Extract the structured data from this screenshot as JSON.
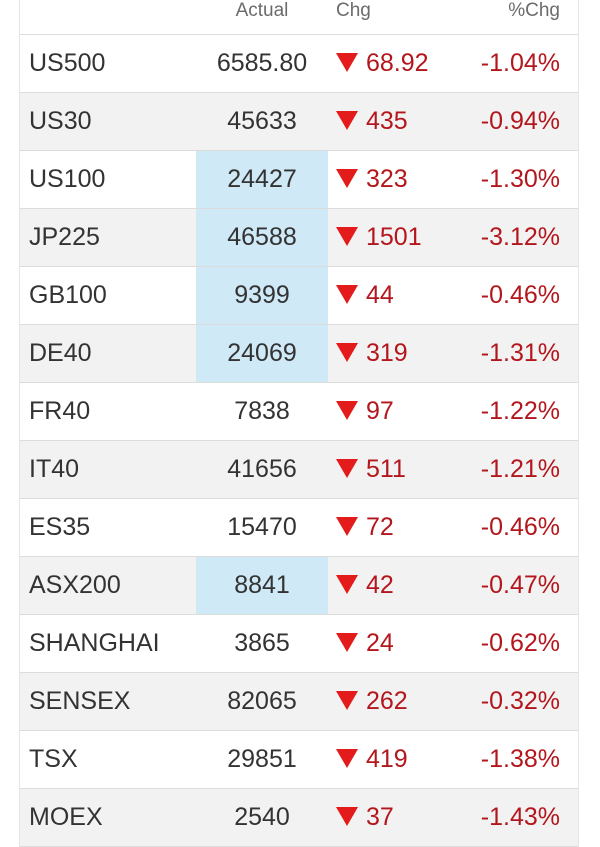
{
  "header": {
    "actual": "Actual",
    "chg": "Chg",
    "pct": "%Chg"
  },
  "colors": {
    "negative": "#b3161c",
    "down_arrow": "#e41b1b",
    "highlight": "#cfe9f7"
  },
  "rows": [
    {
      "name": "US500",
      "actual": "6585.80",
      "chg": "68.92",
      "pct": "-1.04%",
      "highlight": false,
      "direction": "down"
    },
    {
      "name": "US30",
      "actual": "45633",
      "chg": "435",
      "pct": "-0.94%",
      "highlight": false,
      "direction": "down"
    },
    {
      "name": "US100",
      "actual": "24427",
      "chg": "323",
      "pct": "-1.30%",
      "highlight": true,
      "direction": "down"
    },
    {
      "name": "JP225",
      "actual": "46588",
      "chg": "1501",
      "pct": "-3.12%",
      "highlight": true,
      "direction": "down"
    },
    {
      "name": "GB100",
      "actual": "9399",
      "chg": "44",
      "pct": "-0.46%",
      "highlight": true,
      "direction": "down"
    },
    {
      "name": "DE40",
      "actual": "24069",
      "chg": "319",
      "pct": "-1.31%",
      "highlight": true,
      "direction": "down"
    },
    {
      "name": "FR40",
      "actual": "7838",
      "chg": "97",
      "pct": "-1.22%",
      "highlight": false,
      "direction": "down"
    },
    {
      "name": "IT40",
      "actual": "41656",
      "chg": "511",
      "pct": "-1.21%",
      "highlight": false,
      "direction": "down"
    },
    {
      "name": "ES35",
      "actual": "15470",
      "chg": "72",
      "pct": "-0.46%",
      "highlight": false,
      "direction": "down"
    },
    {
      "name": "ASX200",
      "actual": "8841",
      "chg": "42",
      "pct": "-0.47%",
      "highlight": true,
      "direction": "down"
    },
    {
      "name": "SHANGHAI",
      "actual": "3865",
      "chg": "24",
      "pct": "-0.62%",
      "highlight": false,
      "direction": "down"
    },
    {
      "name": "SENSEX",
      "actual": "82065",
      "chg": "262",
      "pct": "-0.32%",
      "highlight": false,
      "direction": "down"
    },
    {
      "name": "TSX",
      "actual": "29851",
      "chg": "419",
      "pct": "-1.38%",
      "highlight": false,
      "direction": "down"
    },
    {
      "name": "MOEX",
      "actual": "2540",
      "chg": "37",
      "pct": "-1.43%",
      "highlight": false,
      "direction": "down"
    }
  ]
}
